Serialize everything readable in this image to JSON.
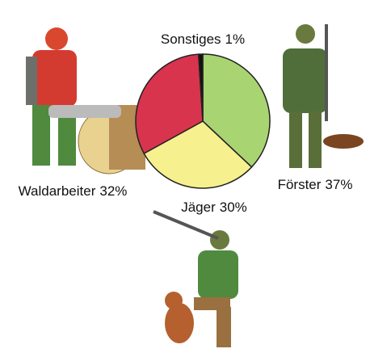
{
  "chart_data": {
    "type": "pie",
    "categories": [
      "Förster",
      "Jäger",
      "Waldarbeiter",
      "Sonstiges"
    ],
    "values": [
      37,
      30,
      32,
      1
    ],
    "value_labels": [
      "37%",
      "30%",
      "32%",
      "1%"
    ],
    "colors": [
      "#a9d472",
      "#f6f08e",
      "#d8344e",
      "#111111"
    ]
  }
}
